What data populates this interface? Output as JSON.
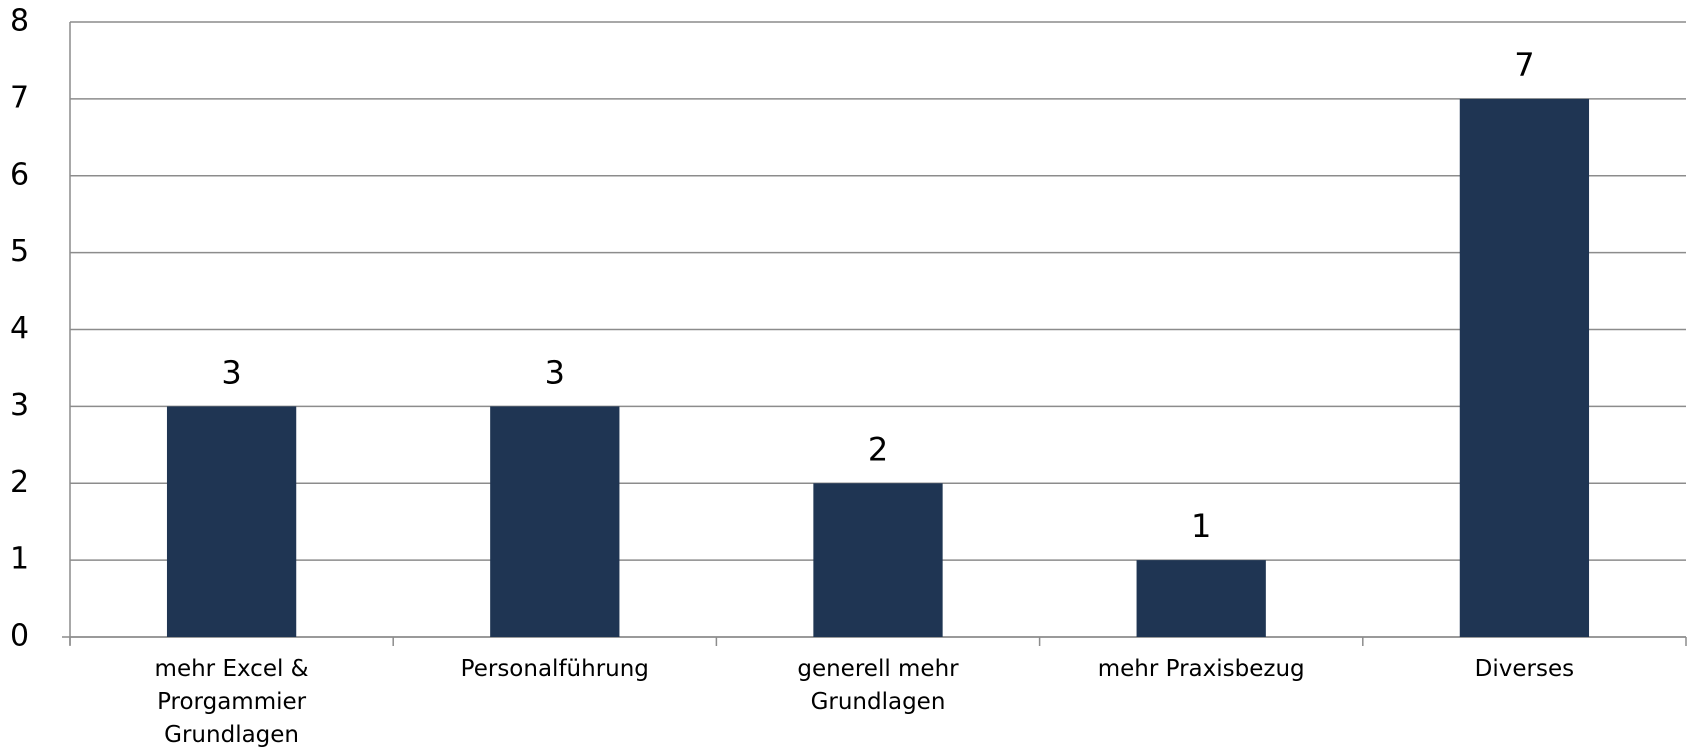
{
  "chart_data": {
    "type": "bar",
    "categories": [
      "mehr Excel & Prorgammier Grundlagen",
      "Personalführung",
      "generell mehr Grundlagen",
      "mehr Praxisbezug",
      "Diverses"
    ],
    "values": [
      3,
      3,
      2,
      1,
      7
    ],
    "color": "#1f3553",
    "ylim": [
      0,
      8
    ],
    "yticks": [
      0,
      1,
      2,
      3,
      4,
      5,
      6,
      7,
      8
    ],
    "grid": true
  }
}
